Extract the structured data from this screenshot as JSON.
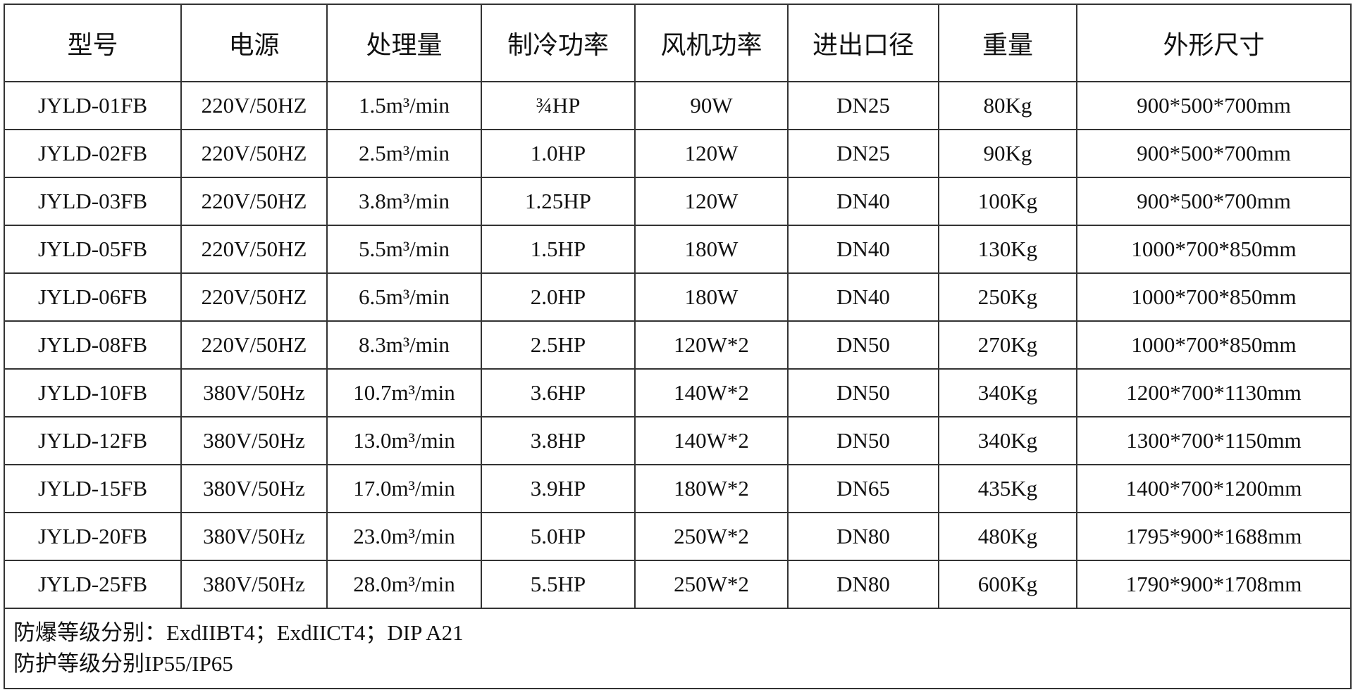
{
  "table": {
    "headers": [
      "型号",
      "电源",
      "处理量",
      "制冷功率",
      "风机功率",
      "进出口径",
      "重量",
      "外形尺寸"
    ],
    "rows": [
      [
        "JYLD-01FB",
        "220V/50HZ",
        "1.5m³/min",
        "¾HP",
        "90W",
        "DN25",
        "80Kg",
        "900*500*700mm"
      ],
      [
        "JYLD-02FB",
        "220V/50HZ",
        "2.5m³/min",
        "1.0HP",
        "120W",
        "DN25",
        "90Kg",
        "900*500*700mm"
      ],
      [
        "JYLD-03FB",
        "220V/50HZ",
        "3.8m³/min",
        "1.25HP",
        "120W",
        "DN40",
        "100Kg",
        "900*500*700mm"
      ],
      [
        "JYLD-05FB",
        "220V/50HZ",
        "5.5m³/min",
        "1.5HP",
        "180W",
        "DN40",
        "130Kg",
        "1000*700*850mm"
      ],
      [
        "JYLD-06FB",
        "220V/50HZ",
        "6.5m³/min",
        "2.0HP",
        "180W",
        "DN40",
        "250Kg",
        "1000*700*850mm"
      ],
      [
        "JYLD-08FB",
        "220V/50HZ",
        "8.3m³/min",
        "2.5HP",
        "120W*2",
        "DN50",
        "270Kg",
        "1000*700*850mm"
      ],
      [
        "JYLD-10FB",
        "380V/50Hz",
        "10.7m³/min",
        "3.6HP",
        "140W*2",
        "DN50",
        "340Kg",
        "1200*700*1130mm"
      ],
      [
        "JYLD-12FB",
        "380V/50Hz",
        "13.0m³/min",
        "3.8HP",
        "140W*2",
        "DN50",
        "340Kg",
        "1300*700*1150mm"
      ],
      [
        "JYLD-15FB",
        "380V/50Hz",
        "17.0m³/min",
        "3.9HP",
        "180W*2",
        "DN65",
        "435Kg",
        "1400*700*1200mm"
      ],
      [
        "JYLD-20FB",
        "380V/50Hz",
        "23.0m³/min",
        "5.0HP",
        "250W*2",
        "DN80",
        "480Kg",
        "1795*900*1688mm"
      ],
      [
        "JYLD-25FB",
        "380V/50Hz",
        "28.0m³/min",
        "5.5HP",
        "250W*2",
        "DN80",
        "600Kg",
        "1790*900*1708mm"
      ]
    ],
    "notes": [
      "防爆等级分别：ExdIIBT4；ExdIICT4；DIP A21",
      "防护等级分别IP55/IP65"
    ]
  }
}
